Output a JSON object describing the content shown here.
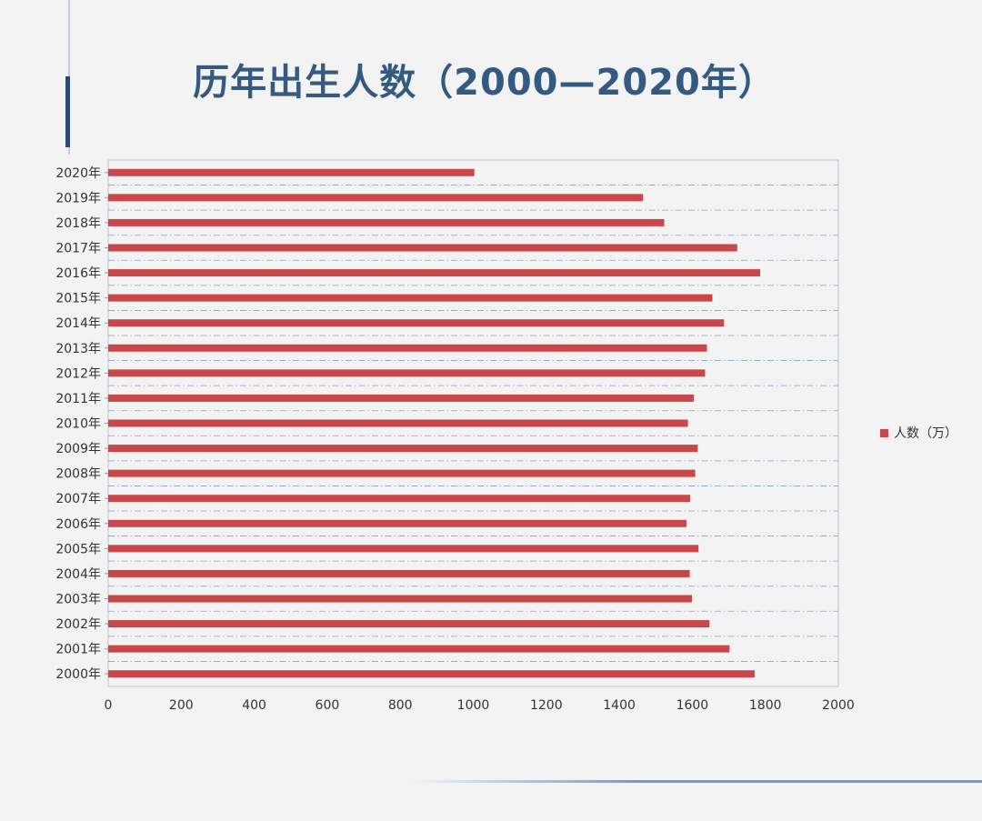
{
  "title": "历年出生人数（2000—2020年）",
  "chart_data": {
    "type": "bar",
    "orientation": "horizontal",
    "title": "历年出生人数（2000—2020年）",
    "categories": [
      "2020年",
      "2019年",
      "2018年",
      "2017年",
      "2016年",
      "2015年",
      "2014年",
      "2013年",
      "2012年",
      "2011年",
      "2010年",
      "2009年",
      "2008年",
      "2007年",
      "2006年",
      "2005年",
      "2004年",
      "2003年",
      "2002年",
      "2001年",
      "2000年"
    ],
    "series": [
      {
        "name": "人数（万）",
        "color": "#c9474b",
        "values": [
          1003,
          1465,
          1523,
          1723,
          1786,
          1655,
          1687,
          1640,
          1635,
          1604,
          1588,
          1615,
          1608,
          1594,
          1584,
          1617,
          1593,
          1599,
          1647,
          1702,
          1771
        ]
      }
    ],
    "xlim": [
      0,
      2000
    ],
    "xticks": [
      "0",
      "200",
      "400",
      "600",
      "800",
      "1000",
      "1200",
      "1400",
      "1600",
      "1800",
      "2000"
    ],
    "grid": "dash-dot horizontal",
    "legend_position": "right"
  },
  "legend": {
    "label": "人数（万）"
  },
  "colors": {
    "bar": "#c9474b",
    "title": "#355a82",
    "accent": "#2a4a72",
    "grid": "#8aa2bd"
  }
}
